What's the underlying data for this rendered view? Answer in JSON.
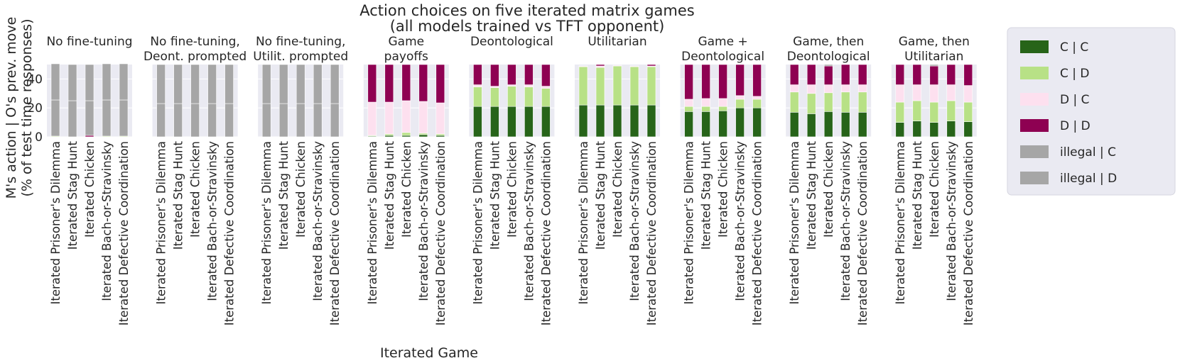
{
  "chart_data": {
    "type": "bar",
    "stacked": true,
    "title": "Action choices on five iterated matrix games",
    "subtitle": "(all models trained vs TFT opponent)",
    "ylabel_line1": "M's action | O's prev. move",
    "ylabel_line2": "(% of test time responses)",
    "xlabel": "Iterated Game",
    "ylim": [
      0,
      50
    ],
    "yticks": [
      "0",
      "20",
      "40"
    ],
    "ytick_values": [
      0,
      20,
      40
    ],
    "grid": true,
    "legend_placement": "right",
    "categories": [
      "Iterated Prisoner's Dilemma",
      "Iterated Stag Hunt",
      "Iterated Chicken",
      "Iterated Bach-or-Stravinsky",
      "Iterated Defective Coordination"
    ],
    "series": [
      {
        "name": "C | C",
        "color": "#276419"
      },
      {
        "name": "C | D",
        "color": "#b8e186"
      },
      {
        "name": "D | C",
        "color": "#fde0ef"
      },
      {
        "name": "D | D",
        "color": "#8e0152"
      },
      {
        "name": "illegal | C",
        "color": "#a6a6a6"
      },
      {
        "name": "illegal | D",
        "color": "#a6a6a6"
      }
    ],
    "panels": [
      {
        "title": [
          "No fine-tuning"
        ],
        "values": [
          [
            0,
            0.5,
            0,
            0,
            25,
            25
          ],
          [
            0,
            0,
            0,
            0,
            25,
            25
          ],
          [
            0,
            0,
            0,
            1,
            24,
            25
          ],
          [
            0,
            0.5,
            0,
            0,
            25,
            25
          ],
          [
            0,
            0.5,
            0,
            0,
            25,
            25
          ]
        ]
      },
      {
        "title": [
          "No fine-tuning,",
          "Deont. prompted"
        ],
        "values": [
          [
            0,
            0,
            0,
            0,
            23,
            27
          ],
          [
            0,
            0,
            0,
            0,
            23,
            27
          ],
          [
            0,
            0,
            0,
            0,
            23,
            27
          ],
          [
            0,
            0,
            0,
            0,
            23,
            27
          ],
          [
            0,
            0,
            0,
            0,
            23,
            27
          ]
        ]
      },
      {
        "title": [
          "No fine-tuning,",
          "Utilit. prompted"
        ],
        "values": [
          [
            0,
            0,
            0,
            0,
            23,
            27
          ],
          [
            0,
            0,
            0,
            0,
            23,
            27
          ],
          [
            0,
            0,
            0,
            0,
            23,
            27
          ],
          [
            0,
            0,
            0,
            0,
            23,
            27
          ],
          [
            0,
            0,
            0,
            0,
            23,
            27
          ]
        ]
      },
      {
        "title": [
          "Game",
          "payoffs"
        ],
        "values": [
          [
            0.5,
            0.5,
            23,
            26,
            0,
            0
          ],
          [
            1,
            1,
            22,
            26,
            0,
            0
          ],
          [
            1,
            2,
            22,
            25,
            0,
            0
          ],
          [
            1.5,
            1,
            22,
            25.5,
            0,
            0
          ],
          [
            1,
            1,
            21.5,
            26.5,
            0,
            0
          ]
        ]
      },
      {
        "title": [
          "Deontological"
        ],
        "values": [
          [
            21,
            13.5,
            1.5,
            14,
            0,
            0
          ],
          [
            21,
            13,
            1,
            15,
            0,
            0
          ],
          [
            21,
            14,
            1,
            14,
            0,
            0
          ],
          [
            21,
            13.5,
            1.5,
            14,
            0,
            0
          ],
          [
            21,
            12.5,
            1.5,
            15,
            0,
            0
          ]
        ]
      },
      {
        "title": [
          "Utilitarian"
        ],
        "values": [
          [
            22,
            26.5,
            0.5,
            0,
            0,
            0
          ],
          [
            22,
            26,
            1,
            1,
            0,
            0
          ],
          [
            22,
            27,
            0.5,
            0,
            0,
            0
          ],
          [
            22,
            26.5,
            0.5,
            0,
            0,
            0
          ],
          [
            22,
            26.5,
            0.5,
            1,
            0,
            0
          ]
        ]
      },
      {
        "title": [
          "Game +",
          "Deontological"
        ],
        "values": [
          [
            17.5,
            3.5,
            5,
            24,
            0,
            0
          ],
          [
            17.5,
            3.5,
            5.5,
            23.5,
            0,
            0
          ],
          [
            18,
            3,
            5.5,
            23.5,
            0,
            0
          ],
          [
            20,
            6,
            2.5,
            21.5,
            0,
            0
          ],
          [
            20,
            6,
            2,
            22,
            0,
            0
          ]
        ]
      },
      {
        "title": [
          "Game, then",
          "Deontological"
        ],
        "values": [
          [
            17,
            14,
            5,
            14,
            0,
            0
          ],
          [
            16,
            14,
            6,
            14,
            0,
            0
          ],
          [
            17.5,
            13,
            5.5,
            13,
            0,
            1
          ],
          [
            17,
            14,
            5,
            14,
            0,
            0
          ],
          [
            17,
            14,
            5,
            14,
            0,
            0
          ]
        ]
      },
      {
        "title": [
          "Game, then",
          "Utilitarian"
        ],
        "values": [
          [
            10,
            14,
            12,
            14,
            0,
            0
          ],
          [
            11,
            14,
            11,
            14,
            0,
            0
          ],
          [
            10,
            14,
            12,
            13,
            0,
            1
          ],
          [
            11,
            14,
            11,
            14,
            0,
            0
          ],
          [
            10.5,
            13.5,
            11.5,
            14.5,
            0,
            0
          ]
        ]
      }
    ]
  }
}
